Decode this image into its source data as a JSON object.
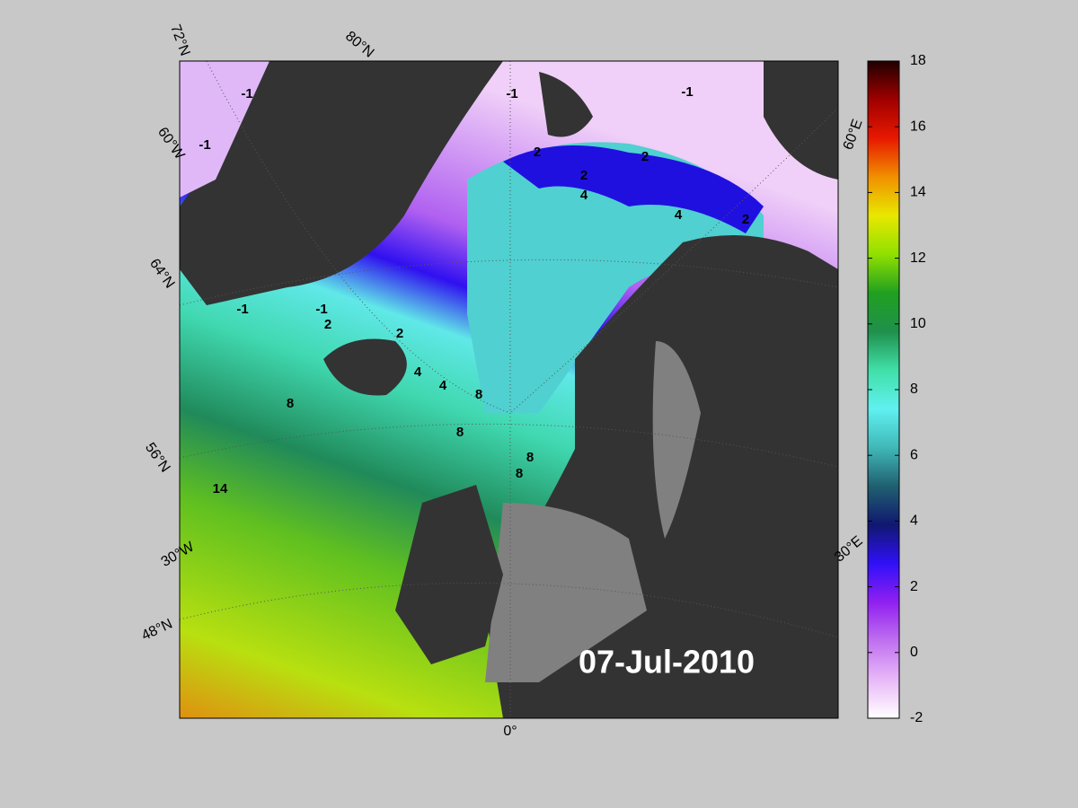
{
  "map": {
    "date": "07-Jul-2010",
    "graticule_labels": [
      "72°N",
      "80°N",
      "60°W",
      "64°N",
      "56°N",
      "30°W",
      "48°N",
      "0°",
      "60°E",
      "30°E"
    ],
    "contour_labels": [
      -1,
      -1,
      -1,
      -1,
      -1,
      -1,
      2,
      2,
      2,
      2,
      2,
      2,
      4,
      4,
      4,
      4,
      8,
      8,
      8,
      8,
      8,
      14
    ]
  },
  "colorbar": {
    "lim": [
      -2,
      18
    ],
    "ticks": [
      -2,
      0,
      2,
      4,
      6,
      8,
      10,
      12,
      14,
      16,
      18
    ],
    "colormap": [
      "#ffffff",
      "#e8b8f8",
      "#c070f0",
      "#9020f0",
      "#3010f8",
      "#101870",
      "#206070",
      "#40b8b8",
      "#60f0f0",
      "#40e0a8",
      "#20904c",
      "#20a020",
      "#90e000",
      "#e8e800",
      "#f09000",
      "#e81800",
      "#a00000",
      "#200000"
    ]
  }
}
